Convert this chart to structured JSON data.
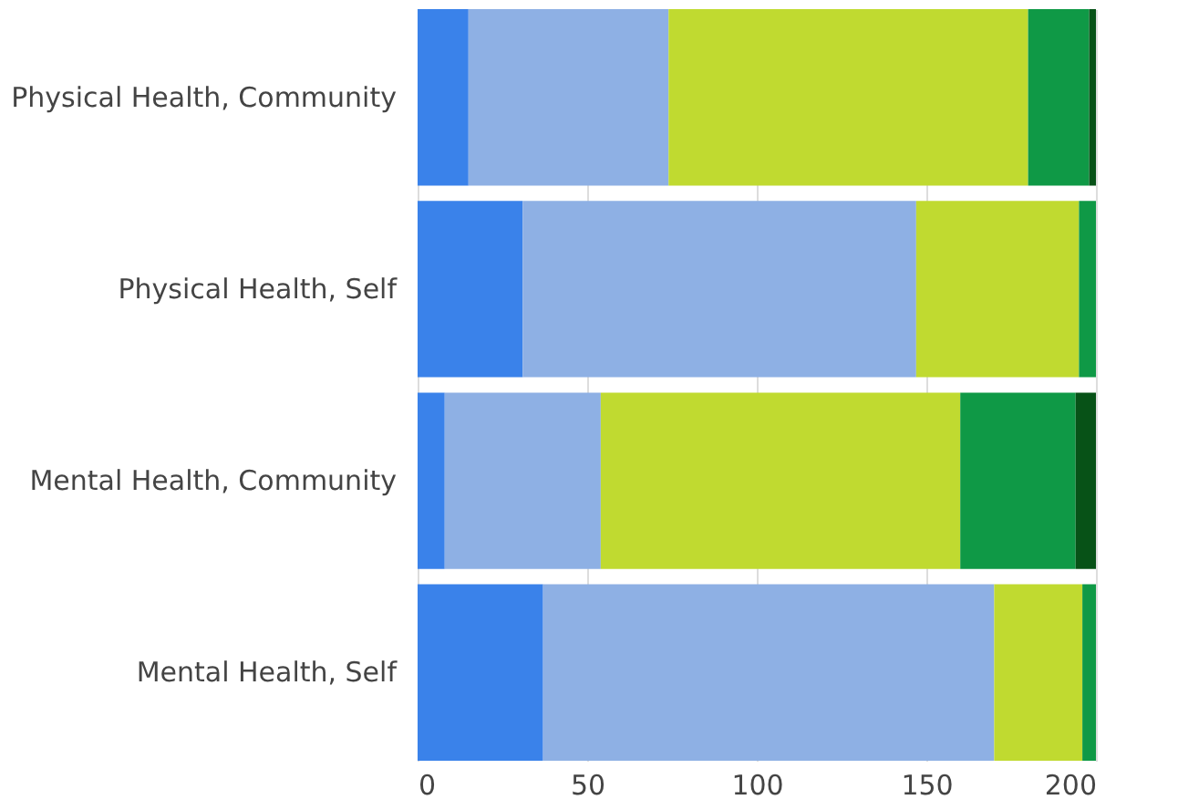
{
  "chart_data": {
    "type": "bar",
    "orientation": "horizontal",
    "stacked": true,
    "categories": [
      "Physical Health, Community",
      "Physical Health, Self",
      "Mental Health, Community",
      "Mental Health, Self"
    ],
    "series": [
      {
        "color": "#3a82ea",
        "values": [
          15,
          31,
          8,
          37
        ]
      },
      {
        "color": "#8eb0e4",
        "values": [
          59,
          116,
          46,
          133
        ]
      },
      {
        "color": "#c0da30",
        "values": [
          106,
          48,
          106,
          26
        ]
      },
      {
        "color": "#0f9946",
        "values": [
          18,
          5,
          34,
          4
        ]
      },
      {
        "color": "#075217",
        "values": [
          2,
          null,
          6,
          null
        ]
      }
    ],
    "xlim": [
      0,
      200
    ],
    "xticks": [
      0,
      50,
      100,
      150,
      200
    ],
    "grid": "x",
    "legend": false
  }
}
